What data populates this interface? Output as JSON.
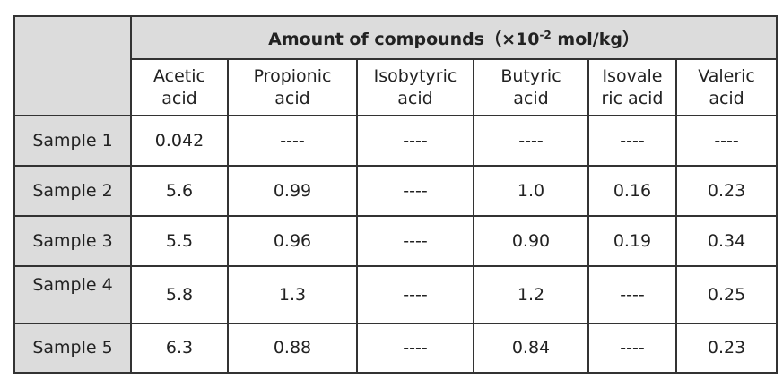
{
  "header": {
    "title_before": "Amount of compounds（×10",
    "title_exponent": "-2",
    "title_after": " mol/kg）",
    "columns": [
      [
        "Acetic",
        "acid"
      ],
      [
        "Propionic",
        "acid"
      ],
      [
        "Isobytyric",
        "acid"
      ],
      [
        "Butyric",
        "acid"
      ],
      [
        "Isovale",
        "ric acid"
      ],
      [
        "Valeric",
        "acid"
      ]
    ]
  },
  "table": {
    "rows": [
      [
        "Sample 1",
        "0.042",
        "----",
        "----",
        "----",
        "----",
        "----"
      ],
      [
        "Sample 2",
        "5.6",
        "0.99",
        "----",
        "1.0",
        "0.16",
        "0.23"
      ],
      [
        "Sample 3",
        "5.5",
        "0.96",
        "----",
        "0.90",
        "0.19",
        "0.34"
      ],
      [
        "Sample 4",
        "5.8",
        "1.3",
        "----",
        "1.2",
        "----",
        "0.25"
      ],
      [
        "Sample 5",
        "6.3",
        "0.88",
        "----",
        "0.84",
        "----",
        "0.23"
      ]
    ]
  }
}
